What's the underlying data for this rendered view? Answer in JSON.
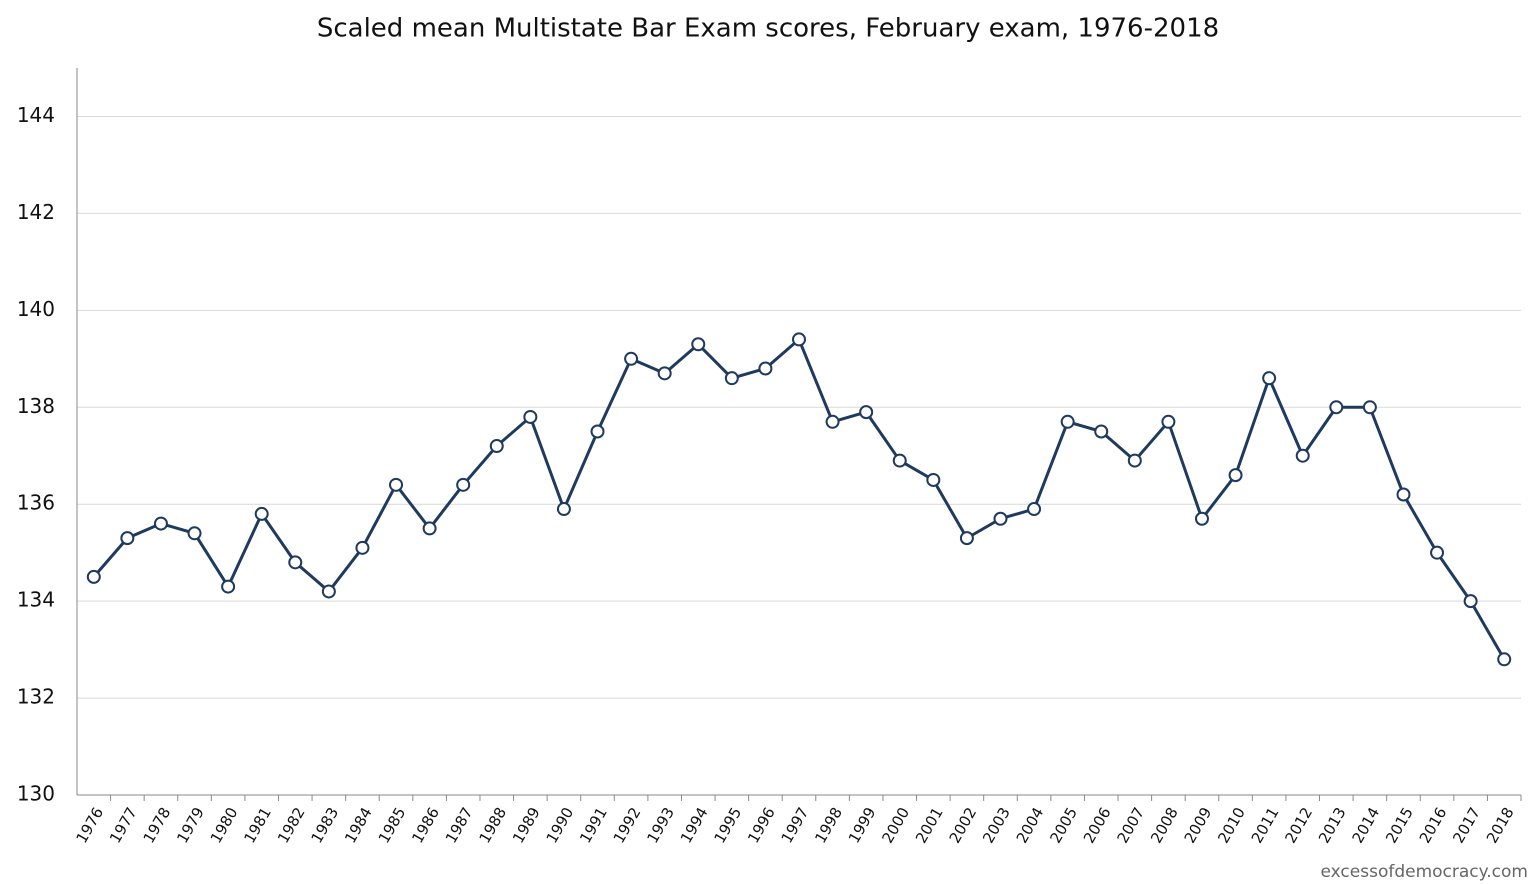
{
  "chart_data": {
    "type": "line",
    "title": "Scaled mean Multistate Bar Exam scores, February exam, 1976-2018",
    "categories": [
      "1976",
      "1977",
      "1978",
      "1979",
      "1980",
      "1981",
      "1982",
      "1983",
      "1984",
      "1985",
      "1986",
      "1987",
      "1988",
      "1989",
      "1990",
      "1991",
      "1992",
      "1993",
      "1994",
      "1995",
      "1996",
      "1997",
      "1998",
      "1999",
      "2000",
      "2001",
      "2002",
      "2003",
      "2004",
      "2005",
      "2006",
      "2007",
      "2008",
      "2009",
      "2010",
      "2011",
      "2012",
      "2013",
      "2014",
      "2015",
      "2016",
      "2017",
      "2018"
    ],
    "values": [
      134.5,
      135.3,
      135.6,
      135.4,
      134.3,
      135.8,
      134.8,
      134.2,
      135.1,
      136.4,
      135.5,
      136.4,
      137.2,
      137.8,
      135.9,
      137.5,
      139.0,
      138.7,
      139.3,
      138.6,
      138.8,
      139.4,
      137.7,
      137.9,
      136.9,
      136.5,
      135.3,
      135.7,
      135.9,
      137.7,
      137.5,
      136.9,
      137.7,
      135.7,
      136.6,
      138.6,
      137.0,
      138.0,
      138.0,
      136.2,
      135.0,
      134.0,
      132.8
    ],
    "color": "#1f3a5f",
    "ylim": [
      130,
      145
    ],
    "yticks": [
      130,
      132,
      134,
      136,
      138,
      140,
      142,
      144
    ],
    "grid": true,
    "source": "excessofdemocracy.com"
  }
}
